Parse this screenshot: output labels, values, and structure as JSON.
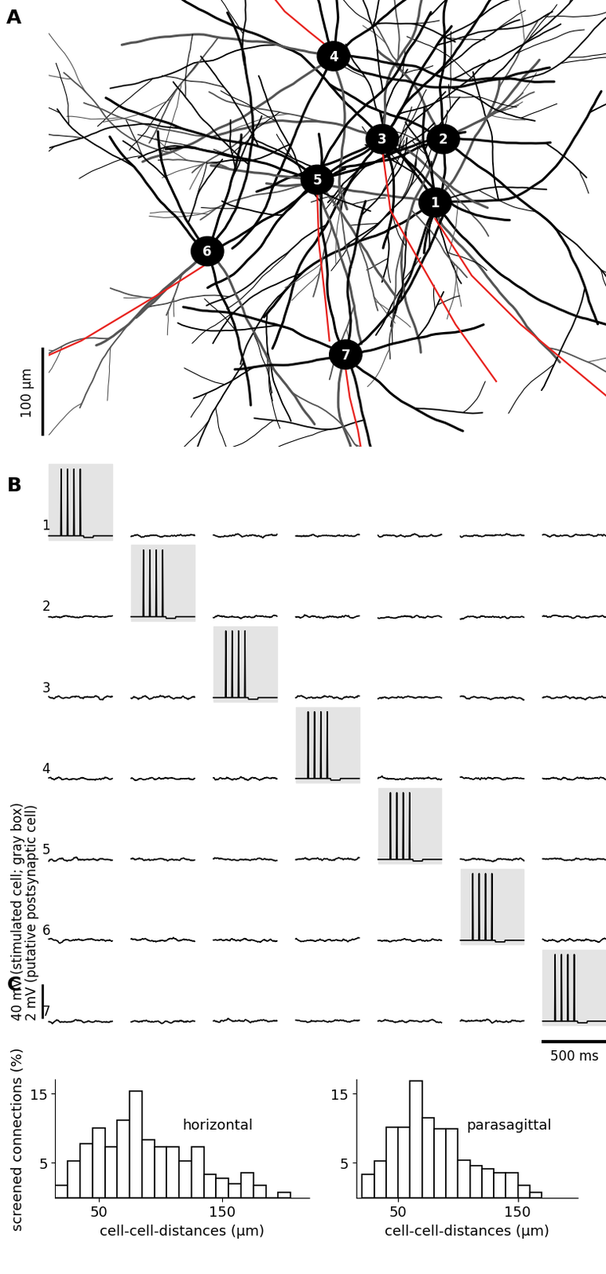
{
  "panel_labels": [
    "A",
    "B",
    "C"
  ],
  "panel_a": {
    "cells": [
      "1",
      "2",
      "3",
      "4",
      "5",
      "6",
      "7"
    ],
    "scale_bar": "100 µm"
  },
  "panel_b": {
    "rows": [
      "1",
      "2",
      "3",
      "4",
      "5",
      "6",
      "7"
    ],
    "scale_labels": [
      "40 mV (stimulated cell; gray box)",
      "2 mV (putative postsynaptic cell)"
    ],
    "time_bar": "500 ms"
  },
  "chart_data": [
    {
      "type": "histogram",
      "title": "horizontal",
      "color": "#ffffff",
      "bins": [
        15,
        25,
        35,
        45,
        55,
        65,
        75,
        85,
        95,
        105,
        115,
        125,
        135,
        145,
        155,
        165,
        175,
        185,
        195,
        205
      ],
      "counts": [
        1.8,
        5.3,
        7.8,
        10,
        7.3,
        11.2,
        15.3,
        8.3,
        7.3,
        7.3,
        5.3,
        7.3,
        3.4,
        2.8,
        2,
        3.6,
        1.8,
        0,
        0.7
      ],
      "xlabel": "cell-cell-distances (µm)",
      "ylabel": "screened connections (%)",
      "xlim": [
        15,
        220
      ],
      "ylim": [
        0,
        17
      ],
      "xticks": [
        50,
        150
      ],
      "yticks": [
        5,
        15
      ]
    },
    {
      "type": "histogram",
      "title": "parasagittal",
      "color": "#ffffff",
      "bins": [
        20,
        30,
        40,
        50,
        60,
        70,
        80,
        90,
        100,
        110,
        120,
        130,
        140,
        150,
        160,
        170
      ],
      "counts": [
        3.4,
        5.3,
        10.2,
        10.2,
        16.8,
        11.5,
        9.9,
        9.9,
        5.4,
        4.6,
        4.1,
        3.6,
        3.6,
        1.8,
        0.7
      ],
      "xlabel": "cell-cell-distances (µm)",
      "xlim": [
        15,
        200
      ],
      "ylim": [
        0,
        17
      ],
      "xticks": [
        50,
        150
      ],
      "yticks": [
        5,
        15
      ]
    }
  ]
}
